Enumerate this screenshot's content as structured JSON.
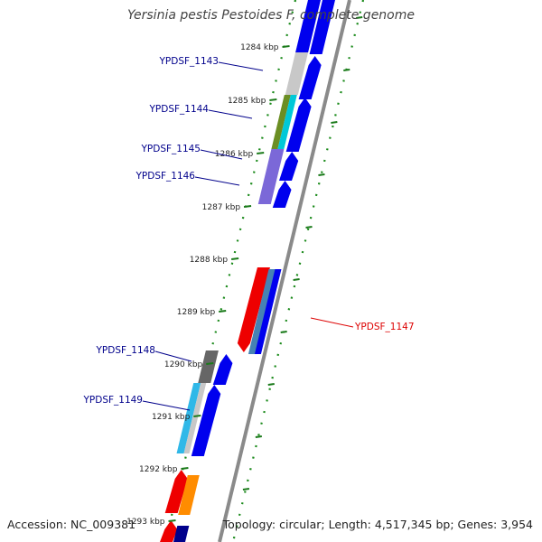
{
  "title": "Yersinia pestis Pestoides F, complete genome",
  "footer": {
    "accession": "Accession: NC_009381",
    "topology": "Topology: circular; Length: 4,517,345 bp; Genes: 3,954"
  },
  "ticks": [
    "1284 kbp",
    "1285 kbp",
    "1286 kbp",
    "1287 kbp",
    "1288 kbp",
    "1289 kbp",
    "1290 kbp",
    "1291 kbp",
    "1292 kbp",
    "1293 kbp"
  ],
  "genes": [
    {
      "id": "YPDSF_1143",
      "color": "#0000aa",
      "strand": "inner"
    },
    {
      "id": "YPDSF_1144",
      "color": "#0000aa",
      "strand": "inner"
    },
    {
      "id": "YPDSF_1145",
      "color": "#0000aa",
      "strand": "inner"
    },
    {
      "id": "YPDSF_1146",
      "color": "#0000aa",
      "strand": "inner"
    },
    {
      "id": "YPDSF_1147",
      "color": "#dd0000",
      "strand": "outer"
    },
    {
      "id": "YPDSF_1148",
      "color": "#0000aa",
      "strand": "inner"
    },
    {
      "id": "YPDSF_1149",
      "color": "#0000aa",
      "strand": "inner"
    }
  ],
  "colors": {
    "backbone": "#8a8a8a",
    "tick_dots": "#1a8a1a",
    "tick_major": "#1a7a1a",
    "blue": "#0000ee",
    "red": "#ee0000",
    "gray": "#c8c8c8",
    "dark_gray": "#666666",
    "olive": "#6b8e23",
    "cyan": "#00c8d8",
    "slate": "#7b68d8",
    "steel": "#4682b4",
    "orange": "#ff8c00",
    "navy": "#00008b",
    "sky": "#30b8e8"
  }
}
